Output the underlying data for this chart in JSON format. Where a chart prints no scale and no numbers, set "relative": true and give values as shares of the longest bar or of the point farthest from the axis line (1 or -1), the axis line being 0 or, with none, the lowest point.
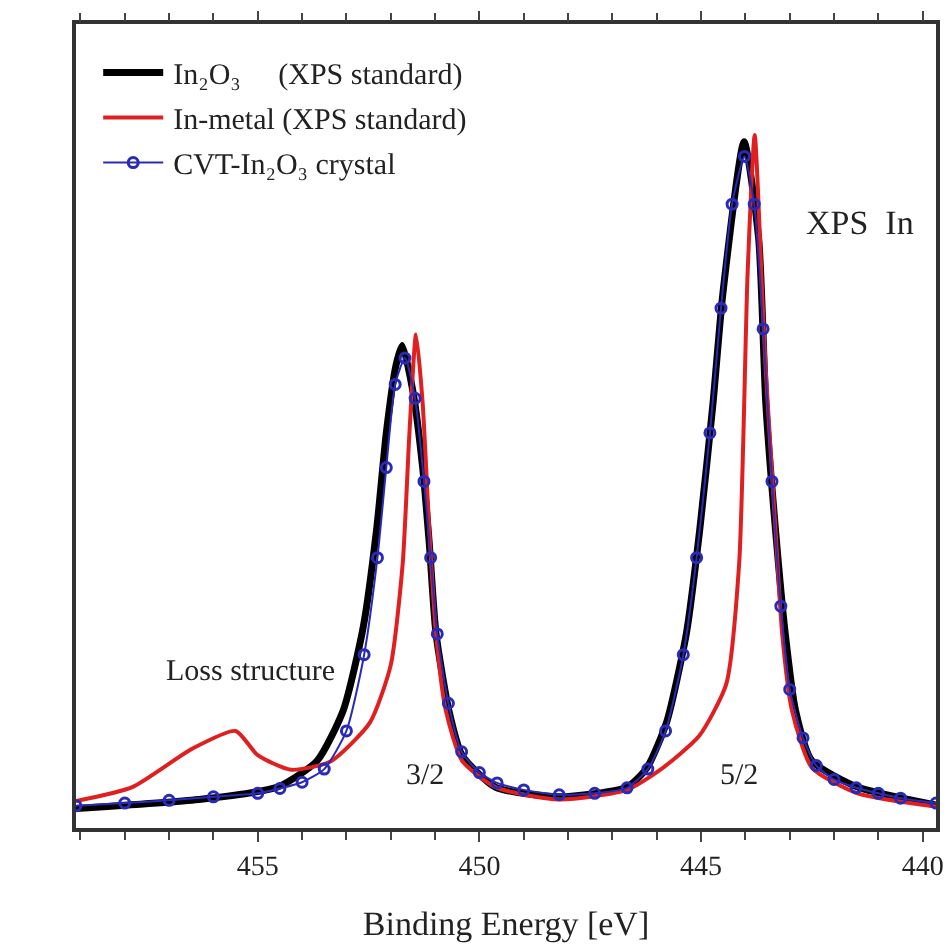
{
  "chart_data": {
    "type": "line",
    "relative": true,
    "xlabel": "Binding Energy [eV]",
    "xlim": [
      459.1,
      439.7
    ],
    "xticks": [
      455,
      450,
      445,
      440
    ],
    "legend": "top left",
    "line_style": "solid",
    "annotations": [
      "XPS  In",
      "Loss structure",
      "3/2",
      "5/2"
    ],
    "series": [
      {
        "name": "In₂O₃     (XPS standard)",
        "color": "#000000",
        "marker": "none",
        "x": [
          459.1,
          456.34,
          454.55,
          453.66,
          453.07,
          452.62,
          452.32,
          452.1,
          451.88,
          451.74,
          451.5,
          451.28,
          451.13,
          450.98,
          450.69,
          450.39,
          449.64,
          448.2,
          446.67,
          446.22,
          445.78,
          445.33,
          445.03,
          444.73,
          444.51,
          444.03,
          443.7,
          443.54,
          443.32,
          443.1,
          442.87,
          442.5,
          441.47,
          439.7
        ],
        "values": [
          0.028,
          0.041,
          0.059,
          0.097,
          0.17,
          0.29,
          0.43,
          0.57,
          0.668,
          0.696,
          0.63,
          0.52,
          0.41,
          0.281,
          0.17,
          0.105,
          0.059,
          0.045,
          0.059,
          0.087,
          0.152,
          0.281,
          0.43,
          0.613,
          0.77,
          0.99,
          0.85,
          0.613,
          0.43,
          0.28,
          0.17,
          0.097,
          0.059,
          0.033
        ]
      },
      {
        "name": "In-metal (XPS standard)",
        "color": "#e02020",
        "marker": "none",
        "x": [
          459.1,
          457.83,
          456.49,
          455.5,
          455.0,
          454.25,
          453.36,
          452.47,
          452.0,
          451.73,
          451.58,
          451.43,
          451.28,
          451.13,
          450.98,
          450.76,
          450.39,
          449.64,
          448.2,
          446.67,
          445.94,
          445.04,
          444.43,
          444.14,
          443.95,
          443.79,
          443.62,
          443.54,
          443.32,
          443.17,
          442.95,
          442.5,
          441.47,
          439.7
        ],
        "values": [
          0.039,
          0.059,
          0.114,
          0.14,
          0.105,
          0.084,
          0.096,
          0.152,
          0.235,
          0.382,
          0.568,
          0.712,
          0.613,
          0.429,
          0.281,
          0.17,
          0.097,
          0.059,
          0.041,
          0.055,
          0.083,
          0.133,
          0.208,
          0.382,
          0.8,
          1.0,
          0.77,
          0.66,
          0.43,
          0.28,
          0.17,
          0.087,
          0.05,
          0.031
        ]
      },
      {
        "name": "CVT-In₂O₃ crystal",
        "color": "#2a2ab8",
        "marker": "circle",
        "x": [
          459.1,
          458,
          457,
          456,
          455,
          454.5,
          454,
          453.5,
          453.0,
          452.6,
          452.3,
          452.1,
          451.9,
          451.68,
          451.45,
          451.25,
          451.1,
          450.95,
          450.7,
          450.4,
          450,
          449.6,
          449,
          448.2,
          447.4,
          446.67,
          446.2,
          445.8,
          445.4,
          445.1,
          444.8,
          444.55,
          444.3,
          444.02,
          443.8,
          443.6,
          443.4,
          443.2,
          443.0,
          442.7,
          442.4,
          442,
          441.5,
          441,
          440.5,
          439.7
        ],
        "values": [
          0.032,
          0.036,
          0.04,
          0.045,
          0.05,
          0.057,
          0.066,
          0.085,
          0.14,
          0.25,
          0.39,
          0.52,
          0.64,
          0.678,
          0.62,
          0.5,
          0.39,
          0.28,
          0.18,
          0.11,
          0.08,
          0.065,
          0.055,
          0.048,
          0.05,
          0.058,
          0.085,
          0.14,
          0.25,
          0.39,
          0.57,
          0.75,
          0.9,
          0.969,
          0.9,
          0.72,
          0.5,
          0.32,
          0.2,
          0.13,
          0.09,
          0.07,
          0.058,
          0.05,
          0.043,
          0.036
        ]
      }
    ]
  }
}
